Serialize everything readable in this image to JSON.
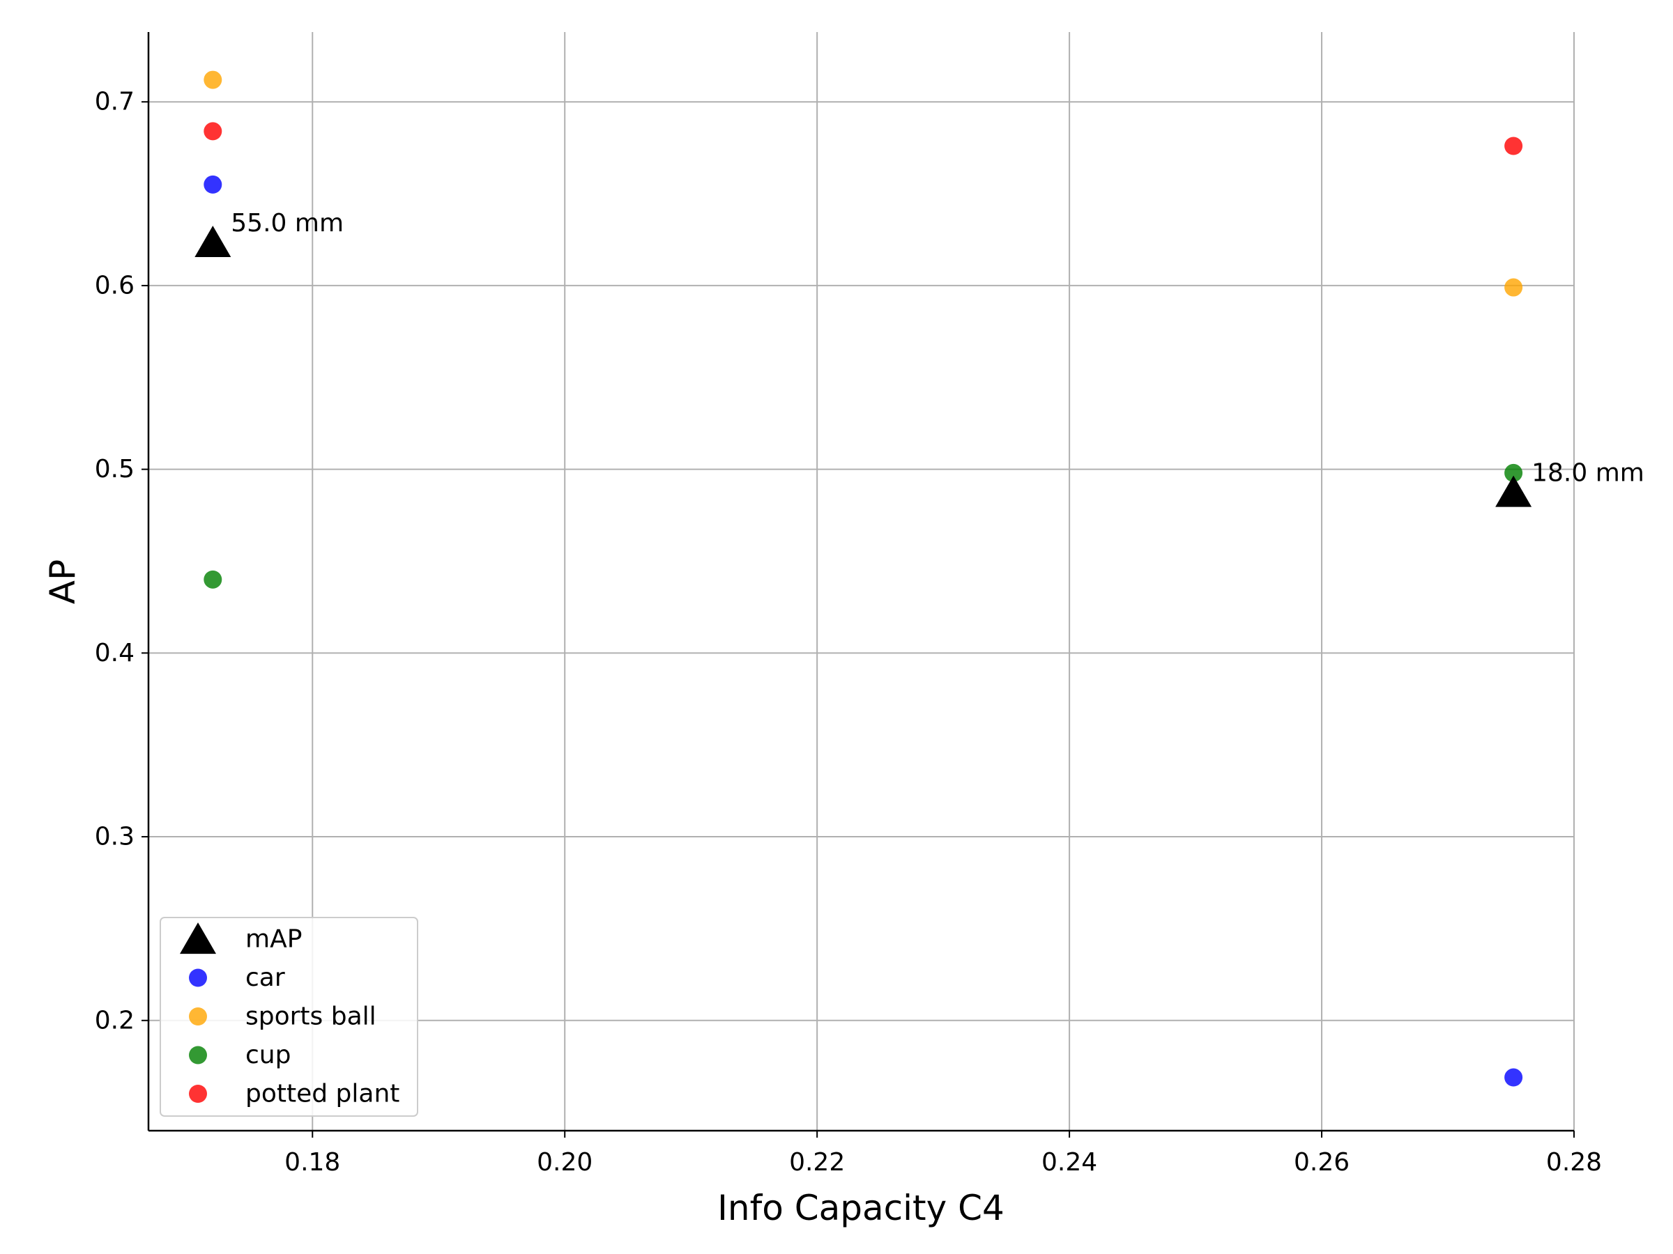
{
  "chart_data": {
    "type": "scatter",
    "title": "",
    "xlabel": "Info Capacity C4",
    "ylabel": "AP",
    "xlim": [
      0.167,
      0.28
    ],
    "ylim": [
      0.14,
      0.738
    ],
    "xticks": [
      0.18,
      0.2,
      0.22,
      0.24,
      0.26,
      0.28
    ],
    "xtick_labels": [
      "0.18",
      "0.20",
      "0.22",
      "0.24",
      "0.26",
      "0.28"
    ],
    "yticks": [
      0.2,
      0.3,
      0.4,
      0.5,
      0.6,
      0.7
    ],
    "ytick_labels": [
      "0.2",
      "0.3",
      "0.4",
      "0.5",
      "0.6",
      "0.7"
    ],
    "grid": true,
    "legend_position": "lower-left",
    "series": [
      {
        "name": "mAP",
        "marker": "triangle",
        "color": "#000000",
        "x": [
          0.1721,
          0.2752
        ],
        "y": [
          0.622,
          0.486
        ]
      },
      {
        "name": "car",
        "marker": "circle",
        "color": "#0000ff",
        "x": [
          0.1721,
          0.2752
        ],
        "y": [
          0.655,
          0.169
        ]
      },
      {
        "name": "sports ball",
        "marker": "circle",
        "color": "#ffa500",
        "x": [
          0.1721,
          0.2752
        ],
        "y": [
          0.712,
          0.599
        ]
      },
      {
        "name": "cup",
        "marker": "circle",
        "color": "#008000",
        "x": [
          0.1721,
          0.2752
        ],
        "y": [
          0.44,
          0.498
        ]
      },
      {
        "name": "potted plant",
        "marker": "circle",
        "color": "#ff0000",
        "x": [
          0.1721,
          0.2752
        ],
        "y": [
          0.684,
          0.676
        ]
      }
    ],
    "annotations": [
      {
        "text": "55.0 mm",
        "x": 0.1721,
        "y": 0.622
      },
      {
        "text": "18.0 mm",
        "x": 0.2752,
        "y": 0.486
      }
    ]
  }
}
